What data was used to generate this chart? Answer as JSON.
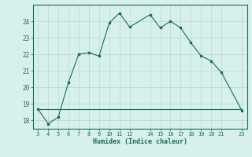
{
  "xlabel": "Humidex (Indice chaleur)",
  "ylabel": "",
  "x_values": [
    3,
    4,
    5,
    6,
    7,
    8,
    9,
    10,
    11,
    12,
    14,
    15,
    16,
    17,
    18,
    19,
    20,
    21,
    23
  ],
  "y_curve": [
    18.7,
    17.8,
    18.2,
    20.3,
    22.0,
    22.1,
    21.9,
    23.9,
    24.5,
    23.65,
    24.4,
    23.6,
    24.0,
    23.6,
    22.7,
    21.9,
    21.6,
    20.9,
    18.6
  ],
  "y_flat_start": 18.7,
  "y_flat_x_start": 3,
  "y_flat_x_end": 23,
  "line_color": "#1a6b5a",
  "bg_color": "#d8f0ec",
  "grid_color": "#b8d8d2",
  "text_color": "#1a6b5a",
  "ylim": [
    17.5,
    25.0
  ],
  "xlim": [
    2.5,
    23.5
  ],
  "yticks": [
    18,
    19,
    20,
    21,
    22,
    23,
    24
  ],
  "xticks": [
    3,
    4,
    5,
    6,
    7,
    8,
    9,
    10,
    11,
    12,
    14,
    15,
    16,
    17,
    18,
    19,
    20,
    21,
    23
  ]
}
